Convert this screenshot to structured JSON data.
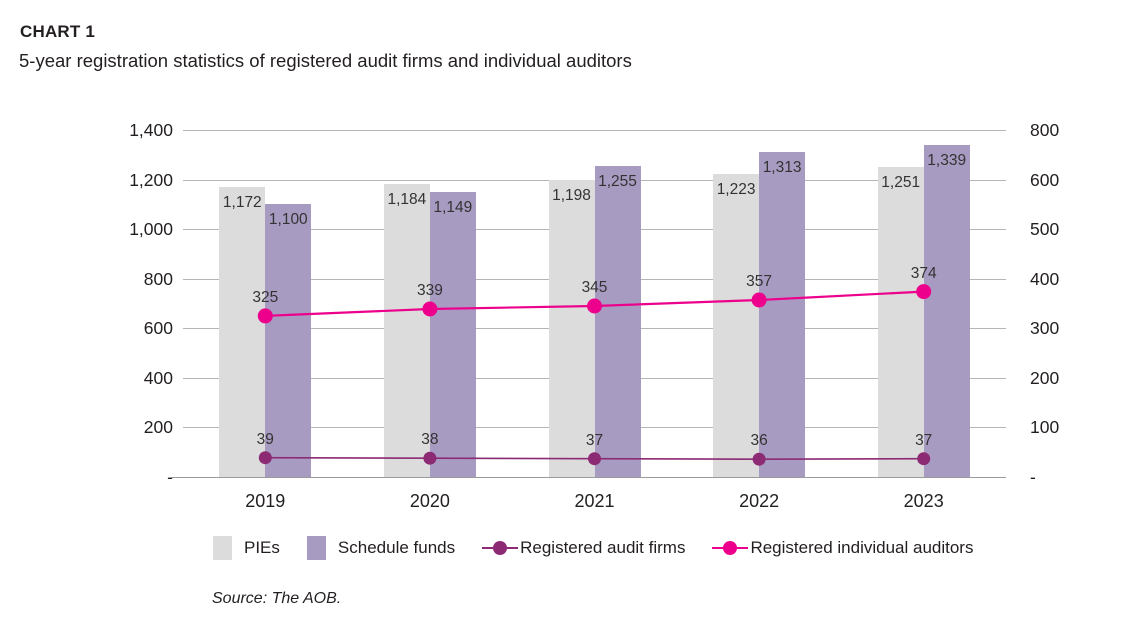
{
  "page": {
    "kicker": "CHART 1",
    "title": "5-year registration statistics of registered audit firms and individual auditors",
    "source": "Source: The AOB."
  },
  "colors": {
    "pies_bar": "#dcdcdc",
    "schedule_funds_bar": "#a89bc1",
    "audit_firms_line": "#8c2a74",
    "individual_auditors_line": "#ec008c",
    "gridline": "#b5b5b5",
    "axis_line": "#9b9b9b",
    "text": "#231f20"
  },
  "chart_data": {
    "type": "bar",
    "subtype": "grouped bars with two overlay lines (combo chart)",
    "title": "5-year registration statistics of registered audit firms and individual auditors",
    "categories": [
      "2019",
      "2020",
      "2021",
      "2022",
      "2023"
    ],
    "bar_series": [
      {
        "name": "PIEs",
        "axis": "left",
        "color_key": "pies_bar",
        "values": [
          1172,
          1184,
          1198,
          1223,
          1251
        ],
        "labels": [
          "1,172",
          "1,184",
          "1,198",
          "1,223",
          "1,251"
        ]
      },
      {
        "name": "Schedule funds",
        "axis": "left",
        "color_key": "schedule_funds_bar",
        "values": [
          1100,
          1149,
          1255,
          1313,
          1339
        ],
        "labels": [
          "1,100",
          "1,149",
          "1,255",
          "1,313",
          "1,339"
        ]
      }
    ],
    "line_series": [
      {
        "name": "Registered audit firms",
        "axis": "right",
        "color_key": "audit_firms_line",
        "values": [
          39,
          38,
          37,
          36,
          37
        ],
        "labels": [
          "39",
          "38",
          "37",
          "36",
          "37"
        ]
      },
      {
        "name": "Registered individual auditors",
        "axis": "right",
        "color_key": "individual_auditors_line",
        "values": [
          325,
          339,
          345,
          357,
          374
        ],
        "labels": [
          "325",
          "339",
          "345",
          "357",
          "374"
        ]
      }
    ],
    "left_axis": {
      "tick_labels": [
        "1,400",
        "1,200",
        "1,000",
        "800",
        "600",
        "400",
        "200",
        "-"
      ],
      "min": 0,
      "max": 1400
    },
    "right_axis": {
      "tick_labels": [
        "800",
        "600",
        "500",
        "400",
        "300",
        "200",
        "100",
        "-"
      ],
      "min": 0
    },
    "grid": "horizontal gridlines on",
    "legend_position": "bottom"
  },
  "legend": {
    "items": [
      {
        "label": "PIEs",
        "marker": "swatch",
        "color_key": "pies_bar"
      },
      {
        "label": "Schedule funds",
        "marker": "swatch",
        "color_key": "schedule_funds_bar"
      },
      {
        "label": "Registered audit firms",
        "marker": "line-dot",
        "color_key": "audit_firms_line"
      },
      {
        "label": "Registered individual auditors",
        "marker": "line-dot",
        "color_key": "individual_auditors_line"
      }
    ]
  }
}
